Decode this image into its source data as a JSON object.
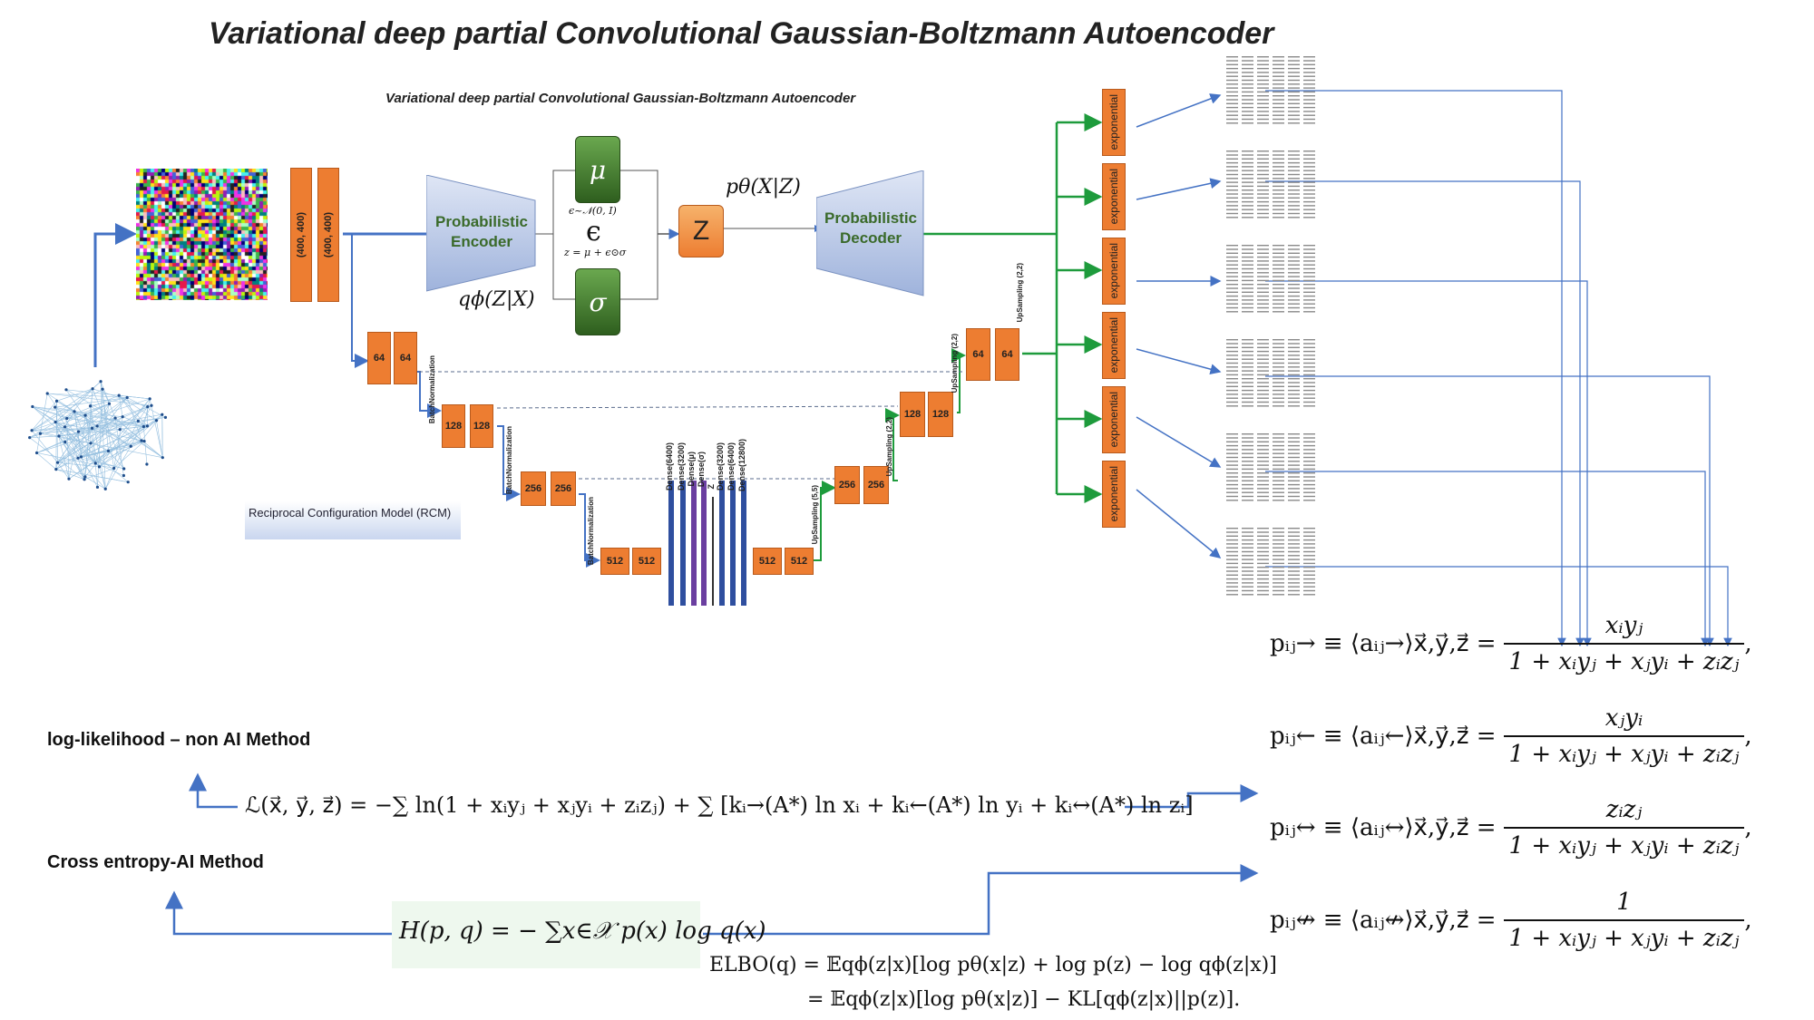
{
  "title": "Variational deep partial Convolutional Gaussian-Boltzmann Autoencoder",
  "subtitle": "Variational deep partial Convolutional Gaussian-Boltzmann Autoencoder",
  "input_blocks": [
    "(400, 400)",
    "(400, 400)"
  ],
  "encoder_label": "Probabilistic Encoder",
  "decoder_label": "Probabilistic Decoder",
  "q_label": "qϕ(Z|X)",
  "p_label": "pθ(X|Z)",
  "mu": "μ",
  "sigma": "σ",
  "epsilon_dist": "ϵ~𝒩(0, I)",
  "epsilon": "ϵ",
  "reparam": "z = μ + ϵ⊙σ",
  "z_label": "Z",
  "unet": {
    "enc": [
      [
        "64",
        "64"
      ],
      [
        "128",
        "128"
      ],
      [
        "256",
        "256"
      ],
      [
        "512",
        "512"
      ]
    ],
    "dec": [
      [
        "512",
        "512"
      ],
      [
        "256",
        "256"
      ],
      [
        "128",
        "128"
      ],
      [
        "64",
        "64"
      ]
    ],
    "batchnorm": "BatchNormalization",
    "upsampling": [
      "UpSampling (5,5)",
      "UpSampling (2,2)",
      "UpSampling (2,2)",
      "UpSampling (2,2)"
    ],
    "dense": [
      "Dense(6400)",
      "Dense(3200)",
      "Dense(μ)",
      "Dense(σ)",
      "Z",
      "Dense(3200)",
      "Dense(6400)",
      "Dense(12800)"
    ]
  },
  "exponential_label": "exponential",
  "rcm_label": "Reciprocal Configuration Model (RCM)",
  "loglik_label": "log-likelihood – non AI Method",
  "crossent_label": "Cross entropy-AI Method",
  "loglik_eq": "ℒ(x⃗, y⃗, z⃗) = −∑ ln(1 + xᵢyⱼ + xⱼyᵢ + zᵢzⱼ) + ∑ [kᵢ→(A*) ln xᵢ + kᵢ←(A*) ln yᵢ + kᵢ↔(A*) ln zᵢ]",
  "entropy_eq": "H(p, q) = − ∑x∈𝒳 p(x) log q(x)",
  "elbo_line1": "ELBO(q) = 𝔼qϕ(z|x)[log pθ(x|z) + log p(z) − log qϕ(z|x)]",
  "elbo_line2": "= 𝔼qϕ(z|x)[log pθ(x|z)] − KL[qϕ(z|x)||p(z)].",
  "probabilities": [
    {
      "lhs": "pᵢⱼ→ ≡ ⟨aᵢⱼ→⟩x⃗,y⃗,z⃗ =",
      "num": "xᵢyⱼ",
      "den": "1 + xᵢyⱼ + xⱼyᵢ + zᵢzⱼ",
      "tail": ","
    },
    {
      "lhs": "pᵢⱼ← ≡ ⟨aᵢⱼ←⟩x⃗,y⃗,z⃗ =",
      "num": "xⱼyᵢ",
      "den": "1 + xᵢyⱼ + xⱼyᵢ + zᵢzⱼ",
      "tail": ","
    },
    {
      "lhs": "pᵢⱼ↔ ≡ ⟨aᵢⱼ↔⟩x⃗,y⃗,z⃗ =",
      "num": "zᵢzⱼ",
      "den": "1 + xᵢyⱼ + xⱼyᵢ + zᵢzⱼ",
      "tail": ","
    },
    {
      "lhs": "pᵢⱼ↮ ≡ ⟨aᵢⱼ↮⟩x⃗,y⃗,z⃗ =",
      "num": "1",
      "den": "1 + xᵢyⱼ + xⱼyᵢ + zᵢzⱼ",
      "tail": ","
    }
  ],
  "colors": {
    "orange": "#ed7d31",
    "green": "#1e9b3c",
    "blue": "#4472c4",
    "navy": "#2f4f9f",
    "purple": "#6b3fa0"
  }
}
